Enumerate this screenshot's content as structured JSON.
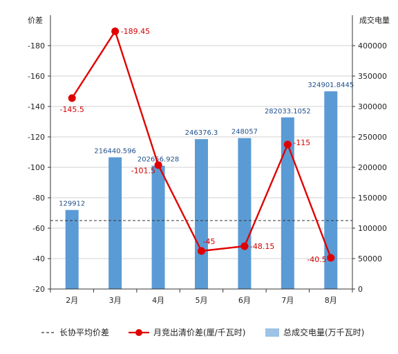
{
  "chart_data": {
    "type": "bar+line",
    "categories": [
      "2月",
      "3月",
      "4月",
      "5月",
      "6月",
      "7月",
      "8月"
    ],
    "y_left_label": "价差",
    "y_right_label": "成交电量",
    "y_left_ticks": [
      "-20",
      "-40",
      "-60",
      "-80",
      "-100",
      "-120",
      "-140",
      "-160",
      "-180"
    ],
    "y_right_ticks": [
      "0",
      "50000",
      "100000",
      "150000",
      "200000",
      "250000",
      "300000",
      "350000",
      "400000"
    ],
    "y_left_range": [
      -20,
      -200
    ],
    "y_right_range": [
      0,
      450000
    ],
    "grid": true,
    "legend_position": "bottom",
    "series": [
      {
        "name": "总成交电量(万千瓦时)",
        "kind": "bar",
        "axis": "right",
        "color": "#5b9bd5",
        "values": [
          129912,
          216440.596,
          202656.928,
          246376.3,
          248057,
          282033.1052,
          324901.8445
        ],
        "labels": [
          "129912",
          "216440.596",
          "202656.928",
          "246376.3",
          "248057",
          "282033.1052",
          "324901.8445"
        ]
      },
      {
        "name": "月竞出清价差(厘/千瓦时)",
        "kind": "line",
        "axis": "left",
        "color": "#e00000",
        "values": [
          -145.5,
          -189.45,
          -101.5,
          -45,
          -48.15,
          -115,
          -40.5
        ],
        "labels": [
          "-145.5",
          "-189.45",
          "-101.5",
          "-45",
          "-48.15",
          "-115",
          "-40.5"
        ]
      },
      {
        "name": "长协平均价差",
        "kind": "reference-line",
        "axis": "left",
        "color": "#333333",
        "value": -65
      }
    ]
  }
}
